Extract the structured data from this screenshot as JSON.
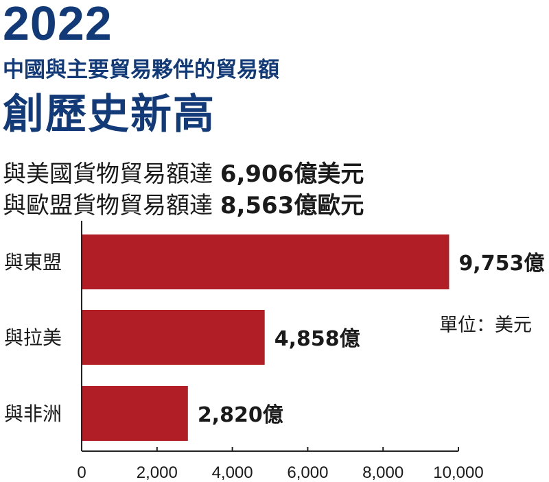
{
  "header": {
    "year": "2022",
    "subtitle": "中國與主要貿易夥伴的貿易額",
    "title": "創歷史新高"
  },
  "stats": [
    {
      "prefix": "與美國貨物貿易額達 ",
      "value": "6,906億美元"
    },
    {
      "prefix": "與歐盟貨物貿易額達 ",
      "value": "8,563億歐元"
    }
  ],
  "unit_label": "單位：美元",
  "colors": {
    "bar": "#b21e25",
    "title": "#123a78",
    "axis": "#222222"
  },
  "chart_data": {
    "type": "bar",
    "orientation": "horizontal",
    "categories": [
      "與東盟",
      "與拉美",
      "與非洲"
    ],
    "values": [
      9753,
      4858,
      2820
    ],
    "value_labels": [
      "9,753億",
      "4,858億",
      "2,820億"
    ],
    "xlim": [
      0,
      10000
    ],
    "xticks": [
      0,
      2000,
      4000,
      6000,
      8000,
      10000
    ],
    "xtick_labels": [
      "0",
      "2,000",
      "4,000",
      "6,000",
      "8,000",
      "10,000"
    ],
    "grid": false,
    "legend": "none"
  }
}
